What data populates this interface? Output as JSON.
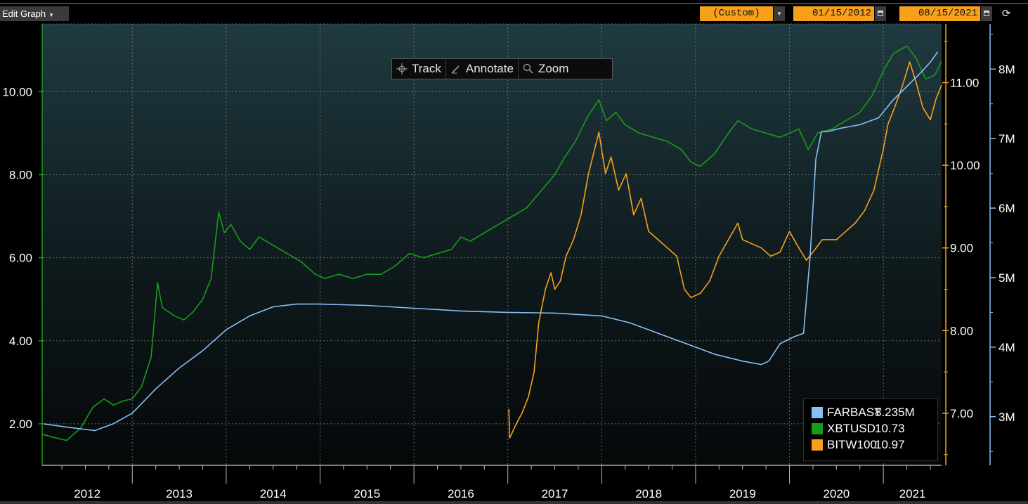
{
  "toolbar": {
    "edit_graph_label": "Edit Graph",
    "period_label": "(Custom)",
    "start_date": "01/15/2012",
    "end_date": "08/15/2021",
    "tools": [
      "Track",
      "Annotate",
      "Zoom"
    ]
  },
  "legend": [
    {
      "name": "FARBAST",
      "value": "8.235M",
      "color": "#86bff5"
    },
    {
      "name": "XBTUSD",
      "value": "10.73",
      "color": "#1a9a1a"
    },
    {
      "name": "BITW100",
      "value": "10.97",
      "color": "#f7a11a"
    }
  ],
  "chart_data": {
    "type": "line",
    "x_labels": [
      "2012",
      "2013",
      "2014",
      "2015",
      "2016",
      "2017",
      "2018",
      "2019",
      "2020",
      "2021"
    ],
    "xlim": [
      2012.04,
      2021.62
    ],
    "grid": true,
    "legend_position": "bottom-right",
    "axes": {
      "left": {
        "ticks": [
          "2.00",
          "4.00",
          "6.00",
          "8.00",
          "10.00"
        ],
        "ylim": [
          1.0,
          11.63
        ],
        "color": "#1a9a1a"
      },
      "right": {
        "ticks": [
          "7.00",
          "8.00",
          "9.00",
          "10.00",
          "11.00"
        ],
        "ylim": [
          6.37,
          11.71
        ],
        "color": "#f7a11a"
      },
      "far_right": {
        "ticks": [
          "3M",
          "4M",
          "5M",
          "6M",
          "7M",
          "8M"
        ],
        "ylim": [
          2.3,
          8.65
        ],
        "unit": "M",
        "color": "#86bff5"
      }
    },
    "series": [
      {
        "name": "XBTUSD",
        "axis": "left",
        "color": "#1a9a1a",
        "points": [
          [
            2012.04,
            1.75
          ],
          [
            2012.15,
            1.68
          ],
          [
            2012.3,
            1.6
          ],
          [
            2012.45,
            1.9
          ],
          [
            2012.58,
            2.4
          ],
          [
            2012.7,
            2.6
          ],
          [
            2012.8,
            2.45
          ],
          [
            2012.9,
            2.55
          ],
          [
            2013.0,
            2.6
          ],
          [
            2013.1,
            2.9
          ],
          [
            2013.2,
            3.6
          ],
          [
            2013.27,
            5.4
          ],
          [
            2013.32,
            4.8
          ],
          [
            2013.45,
            4.6
          ],
          [
            2013.55,
            4.5
          ],
          [
            2013.65,
            4.7
          ],
          [
            2013.75,
            5.0
          ],
          [
            2013.84,
            5.5
          ],
          [
            2013.92,
            7.1
          ],
          [
            2013.98,
            6.6
          ],
          [
            2014.05,
            6.8
          ],
          [
            2014.15,
            6.4
          ],
          [
            2014.25,
            6.2
          ],
          [
            2014.35,
            6.5
          ],
          [
            2014.5,
            6.3
          ],
          [
            2014.65,
            6.1
          ],
          [
            2014.8,
            5.9
          ],
          [
            2014.95,
            5.6
          ],
          [
            2015.05,
            5.5
          ],
          [
            2015.2,
            5.6
          ],
          [
            2015.35,
            5.5
          ],
          [
            2015.5,
            5.6
          ],
          [
            2015.65,
            5.6
          ],
          [
            2015.8,
            5.8
          ],
          [
            2015.95,
            6.1
          ],
          [
            2016.1,
            6.0
          ],
          [
            2016.25,
            6.1
          ],
          [
            2016.4,
            6.2
          ],
          [
            2016.5,
            6.5
          ],
          [
            2016.6,
            6.4
          ],
          [
            2016.75,
            6.6
          ],
          [
            2016.9,
            6.8
          ],
          [
            2017.05,
            7.0
          ],
          [
            2017.2,
            7.2
          ],
          [
            2017.35,
            7.6
          ],
          [
            2017.5,
            8.0
          ],
          [
            2017.6,
            8.4
          ],
          [
            2017.72,
            8.8
          ],
          [
            2017.85,
            9.4
          ],
          [
            2017.97,
            9.8
          ],
          [
            2018.05,
            9.3
          ],
          [
            2018.15,
            9.5
          ],
          [
            2018.25,
            9.2
          ],
          [
            2018.4,
            9.0
          ],
          [
            2018.55,
            8.9
          ],
          [
            2018.7,
            8.8
          ],
          [
            2018.85,
            8.6
          ],
          [
            2018.95,
            8.3
          ],
          [
            2019.05,
            8.2
          ],
          [
            2019.2,
            8.5
          ],
          [
            2019.35,
            9.0
          ],
          [
            2019.45,
            9.3
          ],
          [
            2019.6,
            9.1
          ],
          [
            2019.75,
            9.0
          ],
          [
            2019.9,
            8.9
          ],
          [
            2020.0,
            9.0
          ],
          [
            2020.1,
            9.1
          ],
          [
            2020.2,
            8.6
          ],
          [
            2020.3,
            9.0
          ],
          [
            2020.45,
            9.1
          ],
          [
            2020.6,
            9.3
          ],
          [
            2020.75,
            9.5
          ],
          [
            2020.88,
            9.9
          ],
          [
            2021.0,
            10.5
          ],
          [
            2021.1,
            10.9
          ],
          [
            2021.25,
            11.1
          ],
          [
            2021.35,
            10.8
          ],
          [
            2021.45,
            10.3
          ],
          [
            2021.55,
            10.4
          ],
          [
            2021.62,
            10.73
          ]
        ]
      },
      {
        "name": "BITW100",
        "axis": "right",
        "color": "#f7a11a",
        "points": [
          [
            2017.01,
            7.05
          ],
          [
            2017.02,
            6.7
          ],
          [
            2017.08,
            6.85
          ],
          [
            2017.15,
            7.0
          ],
          [
            2017.22,
            7.2
          ],
          [
            2017.28,
            7.5
          ],
          [
            2017.33,
            8.1
          ],
          [
            2017.4,
            8.5
          ],
          [
            2017.46,
            8.7
          ],
          [
            2017.5,
            8.5
          ],
          [
            2017.56,
            8.6
          ],
          [
            2017.62,
            8.9
          ],
          [
            2017.7,
            9.1
          ],
          [
            2017.78,
            9.4
          ],
          [
            2017.86,
            9.9
          ],
          [
            2017.97,
            10.4
          ],
          [
            2018.04,
            9.9
          ],
          [
            2018.1,
            10.1
          ],
          [
            2018.18,
            9.7
          ],
          [
            2018.26,
            9.9
          ],
          [
            2018.34,
            9.4
          ],
          [
            2018.42,
            9.6
          ],
          [
            2018.5,
            9.2
          ],
          [
            2018.6,
            9.1
          ],
          [
            2018.7,
            9.0
          ],
          [
            2018.8,
            8.9
          ],
          [
            2018.88,
            8.5
          ],
          [
            2018.95,
            8.4
          ],
          [
            2019.05,
            8.45
          ],
          [
            2019.15,
            8.6
          ],
          [
            2019.25,
            8.9
          ],
          [
            2019.35,
            9.1
          ],
          [
            2019.45,
            9.3
          ],
          [
            2019.5,
            9.1
          ],
          [
            2019.6,
            9.05
          ],
          [
            2019.7,
            9.0
          ],
          [
            2019.8,
            8.9
          ],
          [
            2019.9,
            8.95
          ],
          [
            2020.0,
            9.2
          ],
          [
            2020.1,
            9.0
          ],
          [
            2020.18,
            8.85
          ],
          [
            2020.25,
            8.95
          ],
          [
            2020.35,
            9.1
          ],
          [
            2020.5,
            9.1
          ],
          [
            2020.6,
            9.2
          ],
          [
            2020.7,
            9.3
          ],
          [
            2020.8,
            9.45
          ],
          [
            2020.9,
            9.7
          ],
          [
            2021.0,
            10.2
          ],
          [
            2021.05,
            10.5
          ],
          [
            2021.12,
            10.7
          ],
          [
            2021.2,
            10.95
          ],
          [
            2021.28,
            11.25
          ],
          [
            2021.35,
            11.0
          ],
          [
            2021.42,
            10.7
          ],
          [
            2021.5,
            10.55
          ],
          [
            2021.56,
            10.8
          ],
          [
            2021.62,
            10.97
          ]
        ]
      },
      {
        "name": "FARBAST",
        "axis": "far_right",
        "unit": "M",
        "color": "#86bff5",
        "points": [
          [
            2012.04,
            2.9
          ],
          [
            2012.3,
            2.85
          ],
          [
            2012.6,
            2.8
          ],
          [
            2012.8,
            2.9
          ],
          [
            2013.0,
            3.05
          ],
          [
            2013.25,
            3.4
          ],
          [
            2013.5,
            3.7
          ],
          [
            2013.75,
            3.95
          ],
          [
            2014.0,
            4.25
          ],
          [
            2014.25,
            4.45
          ],
          [
            2014.5,
            4.58
          ],
          [
            2014.75,
            4.62
          ],
          [
            2015.0,
            4.62
          ],
          [
            2015.5,
            4.6
          ],
          [
            2016.0,
            4.56
          ],
          [
            2016.5,
            4.52
          ],
          [
            2017.0,
            4.5
          ],
          [
            2017.5,
            4.49
          ],
          [
            2018.0,
            4.45
          ],
          [
            2018.3,
            4.35
          ],
          [
            2018.6,
            4.2
          ],
          [
            2018.9,
            4.05
          ],
          [
            2019.2,
            3.9
          ],
          [
            2019.5,
            3.8
          ],
          [
            2019.7,
            3.75
          ],
          [
            2019.78,
            3.8
          ],
          [
            2019.9,
            4.05
          ],
          [
            2020.05,
            4.15
          ],
          [
            2020.15,
            4.2
          ],
          [
            2020.22,
            5.3
          ],
          [
            2020.28,
            6.7
          ],
          [
            2020.34,
            7.1
          ],
          [
            2020.4,
            7.1
          ],
          [
            2020.55,
            7.15
          ],
          [
            2020.75,
            7.2
          ],
          [
            2020.95,
            7.3
          ],
          [
            2021.1,
            7.55
          ],
          [
            2021.25,
            7.75
          ],
          [
            2021.4,
            7.95
          ],
          [
            2021.5,
            8.1
          ],
          [
            2021.58,
            8.25
          ]
        ]
      }
    ]
  }
}
